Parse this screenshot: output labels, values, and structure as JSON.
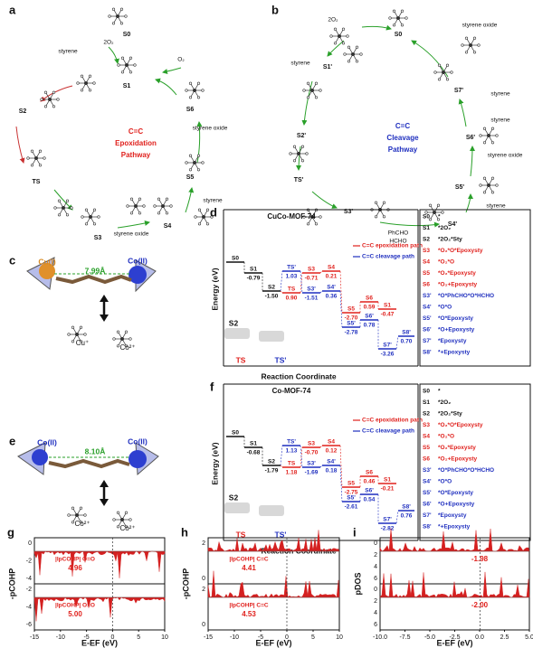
{
  "colors": {
    "common": "#111111",
    "epoxidation": "#e0201c",
    "cleavage": "#1f2fbf",
    "bond": "#2aa02a"
  },
  "panel_a": {
    "label": "a",
    "center": [
      "C=C",
      "Epoxidation",
      "Pathway"
    ],
    "states": [
      "S0",
      "S1",
      "S2",
      "TS",
      "S3",
      "S4",
      "S5",
      "S6"
    ],
    "reagents": [
      "2O₂",
      "styrene",
      "O₂",
      "styrene oxide",
      "styrene",
      "styrene oxide"
    ]
  },
  "panel_b": {
    "label": "b",
    "center": [
      "C=C",
      "Cleavage",
      "Pathway"
    ],
    "states": [
      "S0",
      "S1'",
      "S2'",
      "TS'",
      "S3'",
      "S4'",
      "S5'",
      "S6'",
      "S7'"
    ],
    "reagents": [
      "2O₂",
      "styrene oxide",
      "styrene",
      "styrene",
      "styrene",
      "styrene oxide",
      "styrene",
      "PhCHO",
      "HCHO"
    ]
  },
  "panel_c": {
    "label": "c",
    "metal_left": "Cu(I)",
    "distance": "7.99Å",
    "metal_right": "Co(II)",
    "ions": [
      "Cu⁺",
      "Co²⁺"
    ]
  },
  "panel_d": {
    "label": "d",
    "title": "CuCo-MOF-74",
    "y_label": "Energy (eV)",
    "x_label": "Reaction Coordinate",
    "legend": [
      "C=C epoxidation path",
      "C=C cleavage path"
    ],
    "levels": [
      {
        "name": "S0",
        "path": "common"
      },
      {
        "name": "S1",
        "value": "-0.79",
        "path": "common"
      },
      {
        "name": "S2",
        "value": "-1.50",
        "path": "common"
      },
      {
        "name": "TS",
        "value": "0.90",
        "path": "epoxidation"
      },
      {
        "name": "TS'",
        "value": "1.03",
        "path": "cleavage"
      },
      {
        "name": "S3",
        "value": "-0.71",
        "path": "epoxidation"
      },
      {
        "name": "S4",
        "value": "0.21",
        "path": "epoxidation"
      },
      {
        "name": "S3'",
        "value": "-1.51",
        "path": "cleavage"
      },
      {
        "name": "S4'",
        "value": "0.36",
        "path": "cleavage"
      },
      {
        "name": "S5",
        "value": "-2.70",
        "path": "epoxidation"
      },
      {
        "name": "S6",
        "value": "0.59",
        "path": "epoxidation"
      },
      {
        "name": "S1",
        "value": "-0.47",
        "path": "epoxidation"
      },
      {
        "name": "S5'",
        "value": "-2.78",
        "path": "cleavage"
      },
      {
        "name": "S6'",
        "value": "0.78",
        "path": "cleavage"
      },
      {
        "name": "S7'",
        "value": "-3.26",
        "path": "cleavage"
      },
      {
        "name": "S8'",
        "value": "0.70",
        "path": "cleavage"
      }
    ],
    "images": [
      "S2",
      "TS",
      "TS'"
    ],
    "list": [
      {
        "state": "S0",
        "desc": "*",
        "path": "common"
      },
      {
        "state": "S1",
        "desc": "*2O₂",
        "path": "common"
      },
      {
        "state": "S2",
        "desc": "*2O₂*Sty",
        "path": "common"
      },
      {
        "state": "S3",
        "desc": "*O₂*O*Epoxysty",
        "path": "epoxidation"
      },
      {
        "state": "S4",
        "desc": "*O₂*O",
        "path": "epoxidation"
      },
      {
        "state": "S5",
        "desc": "*O₂*Epoxysty",
        "path": "epoxidation"
      },
      {
        "state": "S6",
        "desc": "*O₂+Epoxysty",
        "path": "epoxidation"
      },
      {
        "state": "S3'",
        "desc": "*O*PhCHO*O*HCHO",
        "path": "cleavage"
      },
      {
        "state": "S4'",
        "desc": "*O*O",
        "path": "cleavage"
      },
      {
        "state": "S5'",
        "desc": "*O*Epoxysty",
        "path": "cleavage"
      },
      {
        "state": "S6'",
        "desc": "*O+Epoxysty",
        "path": "cleavage"
      },
      {
        "state": "S7'",
        "desc": "*Epoxysty",
        "path": "cleavage"
      },
      {
        "state": "S8'",
        "desc": "*+Epoxysty",
        "path": "cleavage"
      }
    ]
  },
  "panel_e": {
    "label": "e",
    "metal_left": "Co(II)",
    "distance": "8.10Å",
    "metal_right": "Co(II)",
    "ions": [
      "Co²⁺",
      "Co²⁺"
    ]
  },
  "panel_f": {
    "label": "f",
    "title": "Co-MOF-74",
    "y_label": "Energy (eV)",
    "x_label": "Reaction Coordinate",
    "legend": [
      "C=C epoxidation path",
      "C=C cleavage path"
    ],
    "levels": [
      {
        "name": "S0",
        "path": "common"
      },
      {
        "name": "S1",
        "value": "-0.68",
        "path": "common"
      },
      {
        "name": "S2",
        "value": "-1.79",
        "path": "common"
      },
      {
        "name": "TS",
        "value": "1.18",
        "path": "epoxidation"
      },
      {
        "name": "TS'",
        "value": "1.13",
        "path": "cleavage"
      },
      {
        "name": "S3",
        "value": "-0.70",
        "path": "epoxidation"
      },
      {
        "name": "S4",
        "value": "0.12",
        "path": "epoxidation"
      },
      {
        "name": "S3'",
        "value": "-1.69",
        "path": "cleavage"
      },
      {
        "name": "S4'",
        "value": "0.18",
        "path": "cleavage"
      },
      {
        "name": "S5",
        "value": "-2.75",
        "path": "epoxidation"
      },
      {
        "name": "S6",
        "value": "0.46",
        "path": "epoxidation"
      },
      {
        "name": "S1",
        "value": "-0.21",
        "path": "epoxidation"
      },
      {
        "name": "S5'",
        "value": "-2.61",
        "path": "cleavage"
      },
      {
        "name": "S6'",
        "value": "0.54",
        "path": "cleavage"
      },
      {
        "name": "S7'",
        "value": "-2.82",
        "path": "cleavage"
      },
      {
        "name": "S8'",
        "value": "0.76",
        "path": "cleavage"
      }
    ],
    "images": [
      "S2",
      "TS",
      "TS'"
    ],
    "list": [
      {
        "state": "S0",
        "desc": "*",
        "path": "common"
      },
      {
        "state": "S1",
        "desc": "*2O₂",
        "path": "common"
      },
      {
        "state": "S2",
        "desc": "*2O₂*Sty",
        "path": "common"
      },
      {
        "state": "S3",
        "desc": "*O₂*O*Epoxysty",
        "path": "epoxidation"
      },
      {
        "state": "S4",
        "desc": "*O₂*O",
        "path": "epoxidation"
      },
      {
        "state": "S5",
        "desc": "*O₂*Epoxysty",
        "path": "epoxidation"
      },
      {
        "state": "S6",
        "desc": "*O₂+Epoxysty",
        "path": "epoxidation"
      },
      {
        "state": "S3'",
        "desc": "*O*PhCHO*O*HCHO",
        "path": "cleavage"
      },
      {
        "state": "S4'",
        "desc": "*O*O",
        "path": "cleavage"
      },
      {
        "state": "S5'",
        "desc": "*O*Epoxysty",
        "path": "cleavage"
      },
      {
        "state": "S6'",
        "desc": "*O+Epoxysty",
        "path": "cleavage"
      },
      {
        "state": "S7'",
        "desc": "*Epoxysty",
        "path": "cleavage"
      },
      {
        "state": "S8'",
        "desc": "*+Epoxysty",
        "path": "cleavage"
      }
    ]
  },
  "panel_g": {
    "label": "g",
    "y_label": "-pCOHP",
    "x_label": "E-EF (eV)",
    "xticks": [
      "-15",
      "-10",
      "-5",
      "0",
      "5",
      "10"
    ],
    "yticks_top": [
      "0",
      "-2",
      "-4"
    ],
    "yticks_bottom": [
      "-2",
      "-4",
      "-6"
    ],
    "annotations": [
      {
        "title": "|IpCOHP| O=O",
        "value": "4.96"
      },
      {
        "title": "|IpCOHP| O=O",
        "value": "5.00"
      }
    ]
  },
  "panel_h": {
    "label": "h",
    "y_label": "-pCOHP",
    "x_label": "E-EF (eV)",
    "xticks": [
      "-15",
      "-10",
      "-5",
      "0",
      "5",
      "10"
    ],
    "yticks_top": [
      "2",
      "0"
    ],
    "yticks_bottom": [
      "2",
      "0"
    ],
    "annotations": [
      {
        "title": "|IpCOHP| C=C",
        "value": "4.41"
      },
      {
        "title": "|IpCOHP| C=C",
        "value": "4.53"
      }
    ]
  },
  "panel_i": {
    "label": "i",
    "y_label": "pDOS",
    "x_label": "E-EF (eV)",
    "xticks": [
      "-10.0",
      "-7.5",
      "-5.0",
      "-2.5",
      "0.0",
      "2.5",
      "5.0"
    ],
    "yticks_top": [
      "0",
      "2",
      "4",
      "6"
    ],
    "yticks_bottom": [
      "0",
      "2",
      "4",
      "6"
    ],
    "annotations": [
      {
        "value": "-1.98"
      },
      {
        "value": "-2.00"
      }
    ]
  }
}
